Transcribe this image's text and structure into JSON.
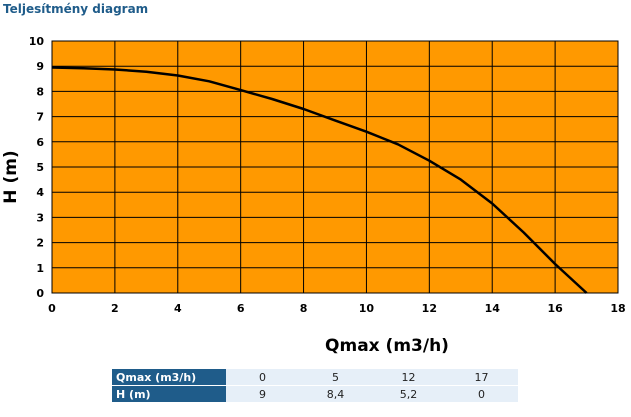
{
  "header": {
    "title": "Teljesítmény diagram"
  },
  "chart_data": {
    "type": "line",
    "xlabel": "Qmax (m3/h)",
    "ylabel": "H (m)",
    "xlim": [
      0,
      18
    ],
    "ylim": [
      0,
      10
    ],
    "xticks": [
      0,
      2,
      4,
      6,
      8,
      10,
      12,
      14,
      16,
      18
    ],
    "yticks": [
      0,
      1,
      2,
      3,
      4,
      5,
      6,
      7,
      8,
      9,
      10
    ],
    "grid": true,
    "plot_background": "#ff9900",
    "line_color": "#000000",
    "series": [
      {
        "x": [
          0,
          1,
          2,
          3,
          4,
          5,
          6,
          7,
          8,
          9,
          10,
          11,
          12,
          13,
          14,
          15,
          16,
          17
        ],
        "y": [
          8.95,
          8.92,
          8.87,
          8.78,
          8.63,
          8.4,
          8.05,
          7.7,
          7.3,
          6.85,
          6.4,
          5.9,
          5.25,
          4.5,
          3.55,
          2.4,
          1.15,
          0
        ]
      }
    ]
  },
  "table": {
    "rows": [
      {
        "label": "Qmax (m3/h)",
        "values": [
          "0",
          "5",
          "12",
          "17"
        ]
      },
      {
        "label": "H (m)",
        "values": [
          "9",
          "8,4",
          "5,2",
          "0"
        ]
      }
    ]
  }
}
